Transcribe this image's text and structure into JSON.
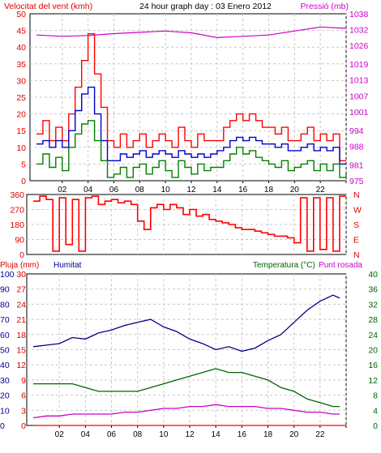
{
  "chart_data": [
    {
      "type": "line",
      "title": "24 hour graph day : 03 Enero 2012",
      "left_axis_label": "Velocitat del vent (kmh)",
      "right_axis_label": "Pressió (mb)",
      "x_ticks": [
        "02",
        "04",
        "06",
        "08",
        "10",
        "12",
        "14",
        "16",
        "18",
        "20",
        "22",
        ""
      ],
      "ylim_left": [
        0,
        50
      ],
      "y_ticks_left": [
        0,
        5,
        10,
        15,
        20,
        25,
        30,
        35,
        40,
        45,
        50
      ],
      "ylim_right": [
        975,
        1038
      ],
      "y_ticks_right": [
        975,
        981,
        988,
        994,
        1001,
        1007,
        1013,
        1019,
        1026,
        1032,
        1038
      ],
      "grid": true,
      "series": [
        {
          "name": "",
          "color": "#ff0000",
          "axis": "left",
          "x": [
            0,
            0.5,
            1,
            1.5,
            2,
            2.5,
            3,
            3.5,
            4,
            4.5,
            5,
            5.5,
            6,
            6.5,
            7,
            7.5,
            8,
            8.5,
            9,
            9.5,
            10,
            10.5,
            11,
            11.5,
            12,
            12.5,
            13,
            13.5,
            14,
            14.5,
            15,
            15.5,
            16,
            16.5,
            17,
            17.5,
            18,
            18.5,
            19,
            19.5,
            20,
            20.5,
            21,
            21.5,
            22,
            22.5,
            23,
            23.5,
            24
          ],
          "values": [
            14,
            18,
            12,
            16,
            12,
            20,
            28,
            36,
            44,
            32,
            22,
            12,
            10,
            14,
            10,
            12,
            14,
            10,
            12,
            14,
            12,
            10,
            16,
            12,
            10,
            14,
            12,
            12,
            12,
            16,
            18,
            20,
            18,
            20,
            18,
            16,
            16,
            14,
            16,
            12,
            12,
            14,
            16,
            12,
            14,
            12,
            14,
            6,
            6
          ]
        },
        {
          "name": "",
          "color": "#0000cc",
          "axis": "left",
          "x": [
            0,
            0.5,
            1,
            1.5,
            2,
            2.5,
            3,
            3.5,
            4,
            4.5,
            5,
            5.5,
            6,
            6.5,
            7,
            7.5,
            8,
            8.5,
            9,
            9.5,
            10,
            10.5,
            11,
            11.5,
            12,
            12.5,
            13,
            13.5,
            14,
            14.5,
            15,
            15.5,
            16,
            16.5,
            17,
            17.5,
            18,
            18.5,
            19,
            19.5,
            20,
            20.5,
            21,
            21.5,
            22,
            22.5,
            23,
            23.5,
            24
          ],
          "values": [
            11,
            12,
            10,
            12,
            10,
            15,
            21,
            26,
            28,
            20,
            12,
            6,
            6,
            8,
            7,
            8,
            9,
            7,
            8,
            9,
            8,
            7,
            9,
            8,
            7,
            8,
            7,
            8,
            9,
            10,
            12,
            13,
            12,
            13,
            12,
            11,
            11,
            10,
            11,
            9,
            9,
            10,
            11,
            9,
            10,
            9,
            10,
            5,
            5
          ]
        },
        {
          "name": "",
          "color": "#008000",
          "axis": "left",
          "x": [
            0,
            0.5,
            1,
            1.5,
            2,
            2.5,
            3,
            3.5,
            4,
            4.5,
            5,
            5.5,
            6,
            6.5,
            7,
            7.5,
            8,
            8.5,
            9,
            9.5,
            10,
            10.5,
            11,
            11.5,
            12,
            12.5,
            13,
            13.5,
            14,
            14.5,
            15,
            15.5,
            16,
            16.5,
            17,
            17.5,
            18,
            18.5,
            19,
            19.5,
            20,
            20.5,
            21,
            21.5,
            22,
            22.5,
            23,
            23.5,
            24
          ],
          "values": [
            5,
            8,
            4,
            7,
            3,
            10,
            14,
            17,
            18,
            12,
            6,
            1,
            2,
            4,
            1,
            4,
            5,
            2,
            4,
            6,
            3,
            1,
            6,
            4,
            2,
            5,
            3,
            4,
            4,
            6,
            8,
            10,
            8,
            9,
            7,
            6,
            5,
            4,
            6,
            3,
            4,
            5,
            6,
            3,
            5,
            3,
            5,
            1,
            2
          ]
        },
        {
          "name": "",
          "color": "#cc00cc",
          "axis": "right",
          "x": [
            0,
            2,
            4,
            6,
            8,
            10,
            12,
            14,
            16,
            18,
            20,
            22,
            24
          ],
          "values": [
            1030,
            1029.5,
            1029.8,
            1030.5,
            1031,
            1031.5,
            1030.8,
            1029,
            1029.5,
            1030,
            1031.5,
            1033,
            1032.5
          ]
        }
      ]
    },
    {
      "type": "line",
      "title": "",
      "right_labels": [
        "N",
        "W",
        "S",
        "E",
        "N"
      ],
      "ylim": [
        0,
        360
      ],
      "y_ticks": [
        0,
        90,
        180,
        270,
        360
      ],
      "grid": true,
      "series": [
        {
          "name": "",
          "color": "#ff0000",
          "x": [
            0,
            0.5,
            1,
            1.5,
            2,
            2.5,
            3,
            3.5,
            4,
            4.5,
            5,
            5.5,
            6,
            6.5,
            7,
            7.5,
            8,
            8.5,
            9,
            9.5,
            10,
            10.5,
            11,
            11.5,
            12,
            12.5,
            13,
            13.5,
            14,
            14.5,
            15,
            15.5,
            16,
            16.5,
            17,
            17.5,
            18,
            18.5,
            19,
            19.5,
            20,
            20.5,
            21,
            21.5,
            22,
            22.5,
            23,
            23.5,
            24
          ],
          "values": [
            320,
            350,
            330,
            20,
            340,
            60,
            330,
            20,
            340,
            350,
            300,
            320,
            330,
            310,
            320,
            300,
            200,
            150,
            280,
            300,
            270,
            300,
            280,
            240,
            270,
            230,
            240,
            210,
            200,
            190,
            180,
            160,
            150,
            150,
            140,
            130,
            120,
            110,
            110,
            100,
            70,
            340,
            20,
            340,
            30,
            340,
            20,
            350,
            350
          ]
        }
      ]
    },
    {
      "type": "line",
      "left_axis_label_1": "Pluja (mm)",
      "left_axis_label_2": "Humitat",
      "right_axis_label_1": "Temperatura (°C)",
      "right_axis_label_2": "Punt rosada",
      "ylim_rain": [
        0,
        30
      ],
      "y_ticks_rain": [
        0,
        3,
        6,
        9,
        12,
        15,
        18,
        21,
        24,
        27,
        30
      ],
      "ylim_hum": [
        0,
        100
      ],
      "y_ticks_hum": [
        0,
        10,
        20,
        30,
        40,
        50,
        60,
        70,
        80,
        90,
        100
      ],
      "ylim_temp": [
        0,
        40
      ],
      "y_ticks_temp": [
        0,
        4,
        8,
        12,
        16,
        20,
        24,
        28,
        32,
        36,
        40
      ],
      "grid": true,
      "series": [
        {
          "name": "",
          "color": "#ff0000",
          "axis": "rain",
          "x": [
            0,
            24
          ],
          "values": [
            0,
            0
          ]
        },
        {
          "name": "",
          "color": "#00008b",
          "axis": "hum",
          "x": [
            0,
            1,
            2,
            3,
            4,
            5,
            6,
            7,
            8,
            9,
            10,
            11,
            12,
            13,
            14,
            15,
            16,
            17,
            18,
            19,
            20,
            21,
            22,
            23,
            23.5
          ],
          "values": [
            52,
            53,
            54,
            58,
            57,
            61,
            63,
            66,
            68,
            70,
            65,
            62,
            57,
            54,
            50,
            52,
            49,
            51,
            56,
            60,
            68,
            76,
            82,
            86,
            84
          ]
        },
        {
          "name": "",
          "color": "#006400",
          "axis": "temp",
          "x": [
            0,
            1,
            2,
            3,
            4,
            5,
            6,
            7,
            8,
            9,
            10,
            11,
            12,
            13,
            14,
            15,
            16,
            17,
            18,
            19,
            20,
            21,
            22,
            23,
            23.5
          ],
          "values": [
            11,
            11,
            11,
            11,
            10,
            9,
            9,
            9,
            9,
            10,
            11,
            12,
            13,
            14,
            15,
            14,
            14,
            13,
            12,
            10,
            9,
            7,
            6,
            5,
            5
          ]
        },
        {
          "name": "",
          "color": "#cc00cc",
          "axis": "temp",
          "x": [
            0,
            1,
            2,
            3,
            4,
            5,
            6,
            7,
            8,
            9,
            10,
            11,
            12,
            13,
            14,
            15,
            16,
            17,
            18,
            19,
            20,
            21,
            22,
            23,
            23.5
          ],
          "values": [
            2,
            2.5,
            2.5,
            3,
            3,
            3,
            3,
            3.5,
            3.5,
            4,
            4.5,
            4.5,
            5,
            5,
            5.5,
            5,
            5,
            5,
            4.5,
            4.5,
            4,
            3.5,
            3.5,
            3,
            3
          ]
        }
      ]
    }
  ]
}
